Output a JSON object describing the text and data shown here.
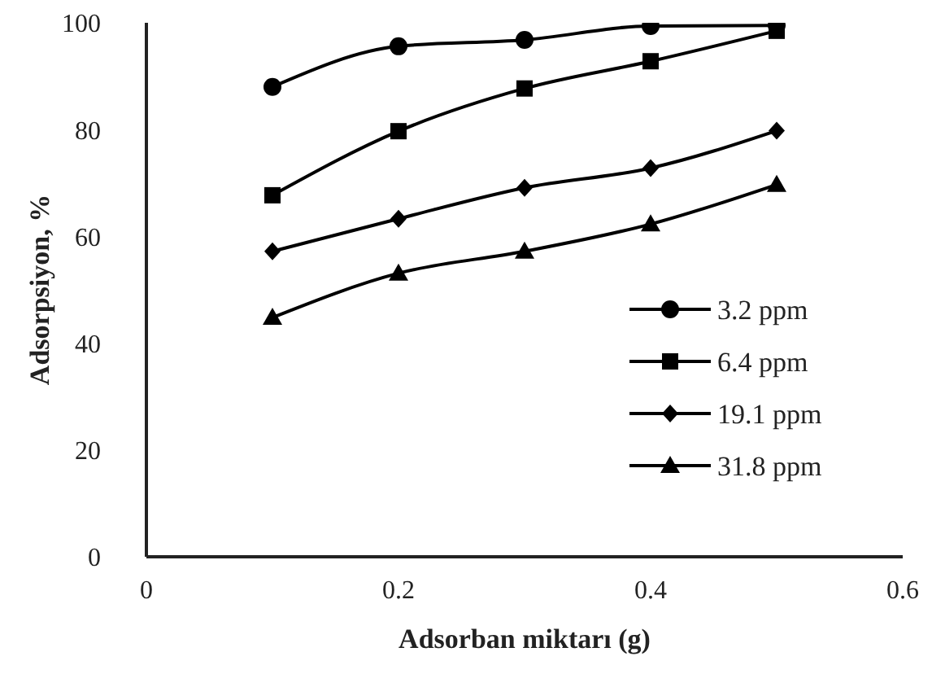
{
  "chart_data": {
    "type": "line",
    "xlabel": "Adsorban miktarı (g)",
    "ylabel": "Adsorpsiyon, %",
    "x": [
      0.1,
      0.2,
      0.3,
      0.4,
      0.5
    ],
    "series": [
      {
        "name": "3.2 ppm",
        "color": "#000000",
        "marker": "circle",
        "values": [
          88,
          95.6,
          96.8,
          99.4,
          99.5
        ]
      },
      {
        "name": "6.4 ppm",
        "color": "#000000",
        "marker": "square",
        "values": [
          67.7,
          79.7,
          87.7,
          92.8,
          98.5
        ]
      },
      {
        "name": "19.1 ppm",
        "color": "#000000",
        "marker": "diamond",
        "values": [
          57.2,
          63.3,
          69.1,
          72.8,
          79.8
        ]
      },
      {
        "name": "31.8 ppm",
        "color": "#000000",
        "marker": "triangle",
        "values": [
          44.8,
          53.1,
          57.2,
          62.3,
          69.7
        ]
      }
    ],
    "xlim": [
      0,
      0.6
    ],
    "xticks": [
      0,
      0.2,
      0.4,
      0.6
    ],
    "ylim": [
      0,
      100
    ],
    "yticks": [
      0,
      20,
      40,
      60,
      80,
      100
    ],
    "grid": false,
    "legend": "bottom right",
    "line_style": "solid"
  }
}
